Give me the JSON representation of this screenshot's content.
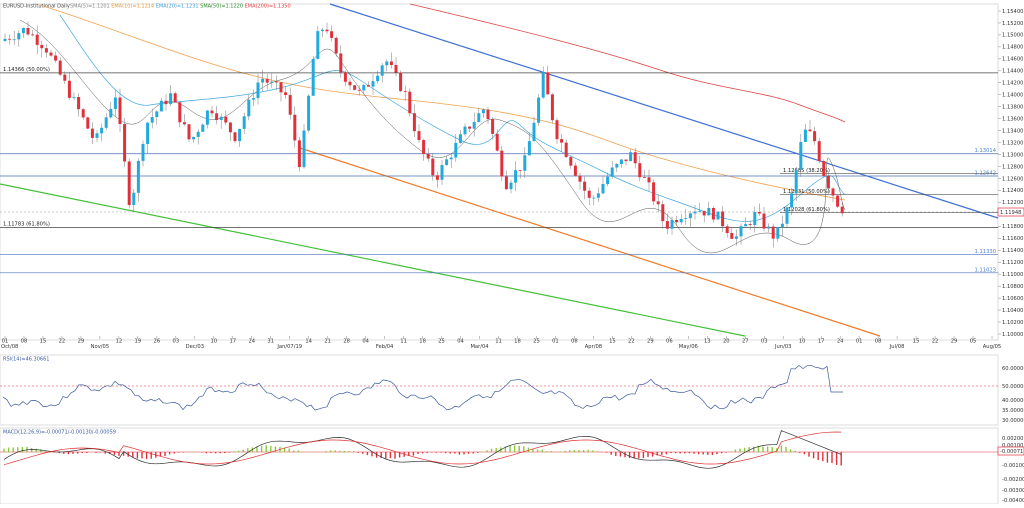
{
  "header": {
    "symbol": "EURUSD-Institutional Daily",
    "indicators": [
      {
        "text": "SMA(5)=1.1201",
        "color": "#888888"
      },
      {
        "text": "EMA(10)=1.1214",
        "color": "#e89a3a"
      },
      {
        "text": "EMA(20)=1.1231",
        "color": "#3fa0d8"
      },
      {
        "text": "SMA(50)=1.1220",
        "color": "#2a8a2a"
      },
      {
        "text": "EMA(200)=1.1350",
        "color": "#e04040"
      }
    ]
  },
  "price_levels": [
    {
      "label": "1.14366 (50.00%)",
      "value": 1.14366,
      "side": "left"
    },
    {
      "label": "1.13014",
      "value": 1.13014,
      "side": "right"
    },
    {
      "label": "1.12642",
      "value": 1.12642,
      "side": "right"
    },
    {
      "label": "1.12685 (38.20%)",
      "value": 1.12685,
      "side": "mid"
    },
    {
      "label": "1.12331 (50.00%)",
      "value": 1.12331,
      "side": "mid"
    },
    {
      "label": "1.12028 (61.80%)",
      "value": 1.12028,
      "side": "mid"
    },
    {
      "label": "1.11783 (61.80%)",
      "value": 1.11783,
      "side": "left"
    },
    {
      "label": "1.11330",
      "value": 1.1133,
      "side": "right"
    },
    {
      "label": "1.11023",
      "value": 1.11023,
      "side": "right"
    }
  ],
  "current_price": "1.11948",
  "y_ticks": [
    "1.15400",
    "1.15200",
    "1.15000",
    "1.14800",
    "1.14600",
    "1.14400",
    "1.14200",
    "1.14000",
    "1.13800",
    "1.13600",
    "1.13400",
    "1.13200",
    "1.13000",
    "1.12800",
    "1.12600",
    "1.12400",
    "1.12200",
    "1.12000",
    "1.11800",
    "1.11600",
    "1.11400",
    "1.11200",
    "1.11000",
    "1.10800",
    "1.10600",
    "1.10400",
    "1.10200",
    "1.10000"
  ],
  "x_ticks": [
    "01",
    "08",
    "15",
    "22",
    "29",
    "Nov/05",
    "12",
    "19",
    "26",
    "03",
    "Dec/03",
    "10",
    "17",
    "24",
    "31",
    "Jan/07/19",
    "14",
    "21",
    "28",
    "04",
    "Feb/04",
    "11",
    "18",
    "25",
    "04",
    "Mar/04",
    "11",
    "18",
    "25",
    "01",
    "08",
    "Apr/08",
    "15",
    "22",
    "29",
    "06",
    "May/06",
    "13",
    "20",
    "27",
    "03",
    "Jun/03",
    "10",
    "17",
    "24",
    "01",
    "08",
    "Jul/08",
    "15",
    "22",
    "29",
    "05",
    "Aug/05"
  ],
  "x_corner_label": "Oct/08",
  "rsi": {
    "label": "RSI(14)=46.30661",
    "ticks": [
      "60.00000",
      "50.00000",
      "40.00000",
      "35.00000",
      "30.00000"
    ]
  },
  "macd": {
    "label": "MACD(12,26,9)=-0.00071/-0.00130/-0.00059",
    "value_badge": "-0.00071",
    "ticks": [
      "0.00200",
      "0.00100",
      "0.00000",
      "-0.00100",
      "-0.00200",
      "-0.00300",
      "-0.00400"
    ]
  },
  "colors": {
    "bull": "#22aadd",
    "bear": "#e0303a",
    "trend_blue": "#3b6fd4",
    "trend_orange": "#f07a2a",
    "trend_green": "#44c03a",
    "ema200": "#e04040",
    "ema50": "#f0a050",
    "ema20": "#40a8e0",
    "hist_pos": "#88c83a",
    "hist_neg": "#e0303a"
  }
}
